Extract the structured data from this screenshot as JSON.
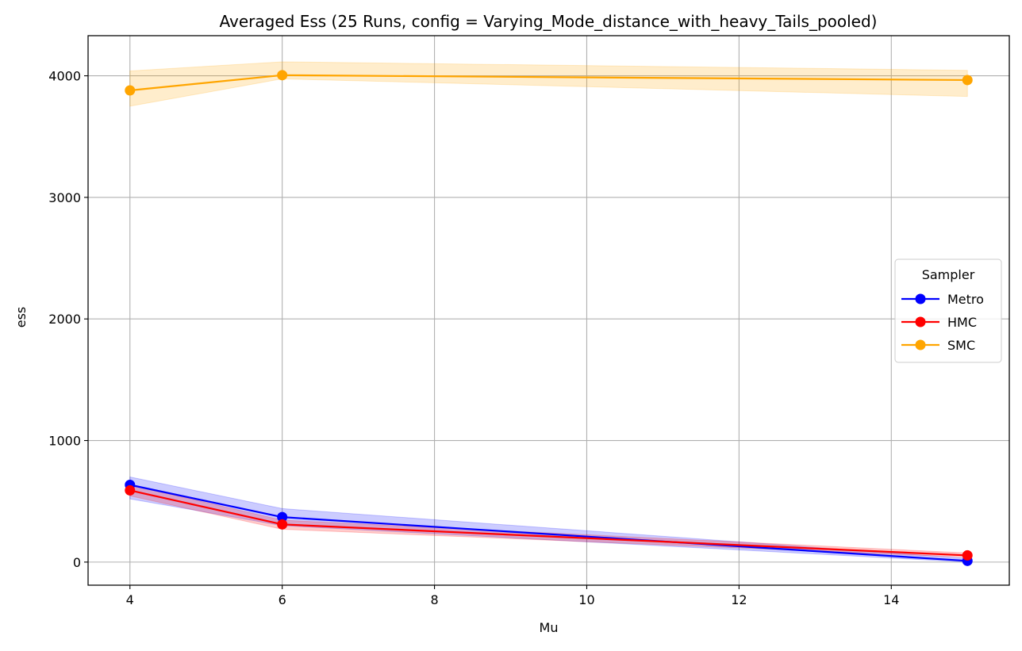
{
  "chart_data": {
    "type": "line",
    "title": "Averaged Ess (25 Runs, config = Varying_Mode_distance_with_heavy_Tails_pooled)",
    "xlabel": "Mu",
    "ylabel": "ess",
    "xlim": [
      3.45,
      15.55
    ],
    "ylim": [
      -190,
      4330
    ],
    "xticks": [
      4,
      6,
      8,
      10,
      12,
      14
    ],
    "yticks": [
      0,
      1000,
      2000,
      3000,
      4000
    ],
    "grid": true,
    "legend": {
      "title": "Sampler",
      "placement": "center-right"
    },
    "x": [
      4,
      6,
      15
    ],
    "series": [
      {
        "name": "Metro",
        "color": "#0000ff",
        "values": [
          635,
          370,
          10
        ],
        "band_lower": [
          520,
          300,
          0
        ],
        "band_upper": [
          700,
          440,
          30
        ]
      },
      {
        "name": "HMC",
        "color": "#ff0000",
        "values": [
          590,
          310,
          55
        ],
        "band_lower": [
          545,
          270,
          40
        ],
        "band_upper": [
          635,
          345,
          75
        ]
      },
      {
        "name": "SMC",
        "color": "#ffa500",
        "values": [
          3880,
          4005,
          3965
        ],
        "band_lower": [
          3750,
          3975,
          3830
        ],
        "band_upper": [
          4040,
          4115,
          4045
        ]
      }
    ]
  }
}
